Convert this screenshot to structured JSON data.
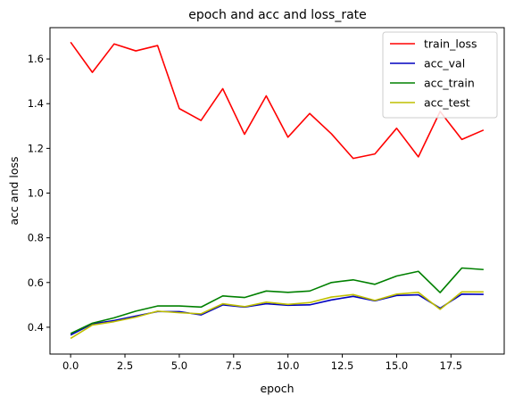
{
  "chart_data": {
    "type": "line",
    "title": "epoch and acc and loss_rate",
    "xlabel": "epoch",
    "ylabel": "acc and loss",
    "xlim": [
      -0.95,
      19.95
    ],
    "ylim": [
      0.28,
      1.74
    ],
    "xticks": [
      0.0,
      2.5,
      5.0,
      7.5,
      10.0,
      12.5,
      15.0,
      17.5
    ],
    "xtick_labels": [
      "0.0",
      "2.5",
      "5.0",
      "7.5",
      "10.0",
      "12.5",
      "15.0",
      "17.5"
    ],
    "yticks": [
      0.4,
      0.6,
      0.8,
      1.0,
      1.2,
      1.4,
      1.6
    ],
    "ytick_labels": [
      "0.4",
      "0.6",
      "0.8",
      "1.0",
      "1.2",
      "1.4",
      "1.6"
    ],
    "grid": false,
    "legend_position": "top-right",
    "x": [
      0,
      1,
      2,
      3,
      4,
      5,
      6,
      7,
      8,
      9,
      10,
      11,
      12,
      13,
      14,
      15,
      16,
      17,
      18,
      19
    ],
    "series": [
      {
        "name": "train_loss",
        "color": "#ff0000",
        "values": [
          1.675,
          1.54,
          1.667,
          1.636,
          1.66,
          1.378,
          1.325,
          1.467,
          1.263,
          1.435,
          1.25,
          1.356,
          1.265,
          1.155,
          1.175,
          1.29,
          1.162,
          1.365,
          1.24,
          1.282
        ]
      },
      {
        "name": "acc_val",
        "color": "#0000bf",
        "values": [
          0.365,
          0.415,
          0.43,
          0.45,
          0.47,
          0.47,
          0.455,
          0.5,
          0.49,
          0.505,
          0.498,
          0.5,
          0.522,
          0.538,
          0.518,
          0.542,
          0.545,
          0.485,
          0.548,
          0.547
        ]
      },
      {
        "name": "acc_train",
        "color": "#008000",
        "values": [
          0.372,
          0.418,
          0.442,
          0.472,
          0.495,
          0.495,
          0.49,
          0.54,
          0.533,
          0.562,
          0.556,
          0.562,
          0.6,
          0.612,
          0.592,
          0.629,
          0.65,
          0.555,
          0.665,
          0.658
        ]
      },
      {
        "name": "acc_test",
        "color": "#bfbf00",
        "values": [
          0.35,
          0.41,
          0.425,
          0.445,
          0.472,
          0.465,
          0.46,
          0.505,
          0.492,
          0.512,
          0.502,
          0.51,
          0.535,
          0.546,
          0.52,
          0.548,
          0.556,
          0.48,
          0.558,
          0.558
        ]
      }
    ]
  }
}
